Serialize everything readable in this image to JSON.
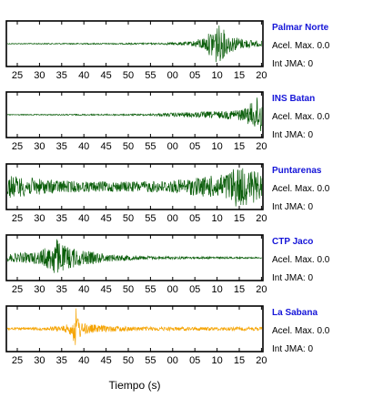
{
  "chart_data": {
    "type": "line",
    "x_ticks": [
      "25",
      "30",
      "35",
      "40",
      "45",
      "50",
      "55",
      "00",
      "05",
      "10",
      "15",
      "20"
    ],
    "xlabel": "Tiempo (s)",
    "panels": [
      {
        "station": "Palmar Norte",
        "acel_label": "Acel. Max.",
        "acel_value": "0.0",
        "jma_label": "Int JMA:",
        "jma_value": "0",
        "color": "#0b5e0b",
        "envelope": [
          {
            "t": 0,
            "a": 0.02
          },
          {
            "t": 0.6,
            "a": 0.04
          },
          {
            "t": 0.72,
            "a": 0.1
          },
          {
            "t": 0.78,
            "a": 0.35
          },
          {
            "t": 0.8,
            "a": 0.65
          },
          {
            "t": 0.82,
            "a": 1.0
          },
          {
            "t": 0.84,
            "a": 0.8
          },
          {
            "t": 0.87,
            "a": 0.45
          },
          {
            "t": 0.92,
            "a": 0.25
          },
          {
            "t": 1,
            "a": 0.12
          }
        ]
      },
      {
        "station": "INS Batan",
        "acel_label": "Acel. Max.",
        "acel_value": "0.0",
        "jma_label": "Int JMA:",
        "jma_value": "0",
        "color": "#0b5e0b",
        "envelope": [
          {
            "t": 0,
            "a": 0.02
          },
          {
            "t": 0.55,
            "a": 0.04
          },
          {
            "t": 0.65,
            "a": 0.1
          },
          {
            "t": 0.85,
            "a": 0.18
          },
          {
            "t": 0.93,
            "a": 0.3
          },
          {
            "t": 0.97,
            "a": 0.7
          },
          {
            "t": 0.99,
            "a": 1.0
          },
          {
            "t": 1,
            "a": 0.9
          }
        ]
      },
      {
        "station": "Puntarenas",
        "acel_label": "Acel. Max.",
        "acel_value": "0.0",
        "jma_label": "Int JMA:",
        "jma_value": "0",
        "color": "#0b5e0b",
        "envelope": [
          {
            "t": 0,
            "a": 0.55
          },
          {
            "t": 0.15,
            "a": 0.35
          },
          {
            "t": 0.3,
            "a": 0.25
          },
          {
            "t": 0.5,
            "a": 0.25
          },
          {
            "t": 0.65,
            "a": 0.3
          },
          {
            "t": 0.75,
            "a": 0.45
          },
          {
            "t": 0.85,
            "a": 0.6
          },
          {
            "t": 0.9,
            "a": 1.0
          },
          {
            "t": 0.95,
            "a": 0.85
          },
          {
            "t": 1,
            "a": 0.6
          }
        ]
      },
      {
        "station": "CTP Jaco",
        "acel_label": "Acel. Max.",
        "acel_value": "0.0",
        "jma_label": "Int JMA:",
        "jma_value": "0",
        "color": "#0b5e0b",
        "envelope": [
          {
            "t": 0,
            "a": 0.18
          },
          {
            "t": 0.12,
            "a": 0.3
          },
          {
            "t": 0.17,
            "a": 0.6
          },
          {
            "t": 0.19,
            "a": 1.0
          },
          {
            "t": 0.22,
            "a": 0.6
          },
          {
            "t": 0.3,
            "a": 0.35
          },
          {
            "t": 0.4,
            "a": 0.18
          },
          {
            "t": 0.55,
            "a": 0.08
          },
          {
            "t": 0.7,
            "a": 0.06
          },
          {
            "t": 1,
            "a": 0.03
          }
        ]
      },
      {
        "station": "La Sabana",
        "acel_label": "Acel. Max.",
        "acel_value": "0.0",
        "jma_label": "Int JMA:",
        "jma_value": "0",
        "color": "#f5a300",
        "envelope": [
          {
            "t": 0,
            "a": 0.06
          },
          {
            "t": 0.15,
            "a": 0.08
          },
          {
            "t": 0.22,
            "a": 0.15
          },
          {
            "t": 0.25,
            "a": 0.3
          },
          {
            "t": 0.27,
            "a": 1.0
          },
          {
            "t": 0.29,
            "a": 0.3
          },
          {
            "t": 0.35,
            "a": 0.18
          },
          {
            "t": 0.5,
            "a": 0.1
          },
          {
            "t": 0.7,
            "a": 0.09
          },
          {
            "t": 1,
            "a": 0.08
          }
        ]
      }
    ]
  }
}
